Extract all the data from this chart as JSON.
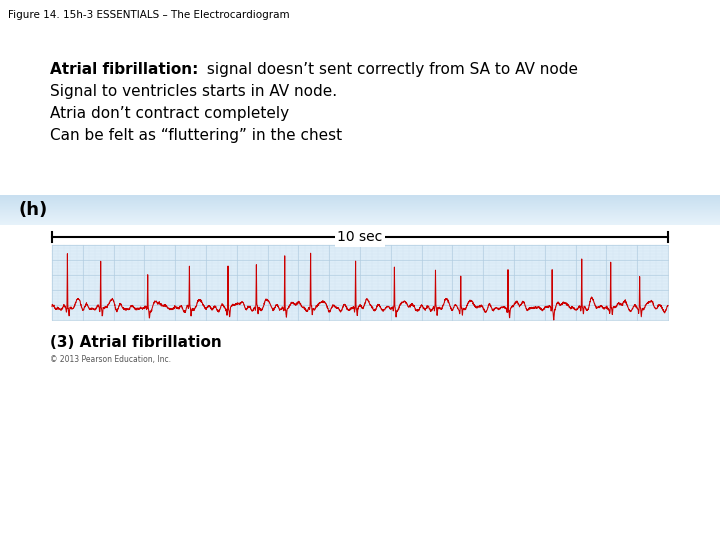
{
  "figure_label": "Figure 14. 15h-3 ESSENTIALS – The Electrocardiogram",
  "title_bold": "Atrial fibrillation:",
  "title_rest": " signal doesn’t sent correctly from SA to AV node",
  "line2": "Signal to ventricles starts in AV node.",
  "line3": "Atria don’t contract completely",
  "line4": "Can be felt as “fluttering” in the chest",
  "panel_label": "(h)",
  "scale_label": "10 sec",
  "caption": "(3) Atrial fibrillation",
  "copyright": "© 2013 Pearson Education, Inc.",
  "ecg_color": "#cc0000",
  "grid_color_major": "#b0cce0",
  "grid_color_minor": "#cfe3f0",
  "bg_color": "#deedf8",
  "panel_bg_top": "#c8dff0",
  "panel_bg_bot": "#e8f3fb",
  "fig_bg": "#ffffff",
  "text_color": "#000000",
  "title_fontsize": 11,
  "label_fontsize": 7.5,
  "body_fontsize": 11,
  "caption_fontsize": 11
}
